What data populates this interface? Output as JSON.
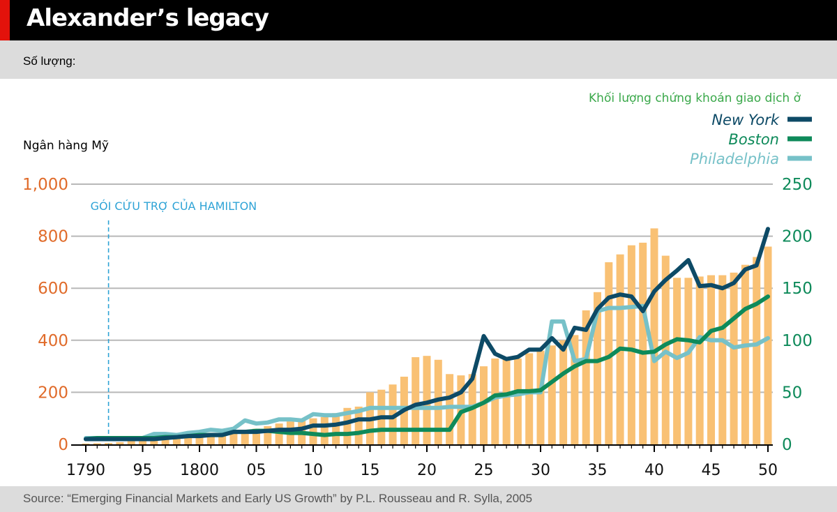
{
  "header": {
    "title": "Alexander’s legacy",
    "subtitle": "Số lượng:"
  },
  "footer": {
    "source": "Source: “Emerging Financial Markets and Early US Growth” by P.L. Rousseau and R. Sylla, 2005"
  },
  "colors": {
    "bars": "#f9c174",
    "new_york": "#0d4a66",
    "boston": "#0e8a5a",
    "philadelphia": "#76c1c8",
    "left_axis": "#e06b2a",
    "right_axis": "#0e8a5a",
    "annotation": "#2ea3d6",
    "grid": "#b8b8b8"
  },
  "chart_data": {
    "type": "bar+line",
    "title": "Alexander’s legacy",
    "left_axis": {
      "label": "Ngân hàng Mỹ",
      "ylim": [
        0,
        1000
      ],
      "ticks": [
        0,
        200,
        400,
        600,
        800,
        1000
      ],
      "tick_labels": [
        "0",
        "200",
        "400",
        "600",
        "800",
        "1,000"
      ]
    },
    "right_axis": {
      "ylim": [
        0,
        250
      ],
      "ticks": [
        0,
        50,
        100,
        150,
        200,
        250
      ],
      "tick_labels": [
        "0",
        "50",
        "100",
        "150",
        "200",
        "250"
      ]
    },
    "x_axis": {
      "range": [
        1790,
        1850
      ],
      "ticks": [
        1790,
        1795,
        1800,
        1805,
        1810,
        1815,
        1820,
        1825,
        1830,
        1835,
        1840,
        1845,
        1850
      ],
      "tick_labels": [
        "1790",
        "95",
        "1800",
        "05",
        "10",
        "15",
        "20",
        "25",
        "30",
        "35",
        "40",
        "45",
        "50"
      ]
    },
    "annotation": {
      "x": 1792,
      "text": "GÓI CỨU TRỢ CỦA HAMILTON"
    },
    "legend": {
      "heading": "Khối lượng chứng khoán giao dịch ở",
      "items": [
        "New York",
        "Boston",
        "Philadelphia"
      ]
    },
    "bars": {
      "name": "Ngân hàng Mỹ",
      "years": [
        1790,
        1791,
        1792,
        1793,
        1794,
        1795,
        1796,
        1797,
        1798,
        1799,
        1800,
        1801,
        1802,
        1803,
        1804,
        1805,
        1806,
        1807,
        1808,
        1809,
        1810,
        1811,
        1812,
        1813,
        1814,
        1815,
        1816,
        1817,
        1818,
        1819,
        1820,
        1821,
        1822,
        1823,
        1824,
        1825,
        1826,
        1827,
        1828,
        1829,
        1830,
        1831,
        1832,
        1833,
        1834,
        1835,
        1836,
        1837,
        1838,
        1839,
        1840,
        1841,
        1842,
        1843,
        1844,
        1845,
        1846,
        1847,
        1848,
        1849,
        1850
      ],
      "values": [
        3,
        4,
        5,
        8,
        12,
        18,
        20,
        25,
        30,
        32,
        32,
        35,
        40,
        45,
        50,
        60,
        70,
        80,
        88,
        90,
        100,
        105,
        120,
        140,
        145,
        200,
        210,
        230,
        260,
        335,
        340,
        325,
        270,
        265,
        270,
        300,
        330,
        330,
        330,
        350,
        360,
        380,
        400,
        420,
        515,
        585,
        700,
        730,
        765,
        775,
        830,
        725,
        640,
        640,
        645,
        650,
        650,
        660,
        690,
        720,
        760
      ]
    },
    "series": [
      {
        "name": "New York",
        "axis": "right",
        "x": [
          1790,
          1791,
          1792,
          1793,
          1794,
          1795,
          1796,
          1797,
          1798,
          1799,
          1800,
          1801,
          1802,
          1803,
          1804,
          1805,
          1806,
          1807,
          1808,
          1809,
          1810,
          1811,
          1812,
          1813,
          1814,
          1815,
          1816,
          1817,
          1818,
          1819,
          1820,
          1821,
          1822,
          1823,
          1824,
          1825,
          1826,
          1827,
          1828,
          1829,
          1830,
          1831,
          1832,
          1833,
          1834,
          1835,
          1836,
          1837,
          1838,
          1839,
          1840,
          1841,
          1842,
          1843,
          1844,
          1845,
          1846,
          1847,
          1848,
          1849,
          1850
        ],
        "values": [
          5,
          5,
          5,
          5,
          5,
          5,
          5,
          6,
          7,
          8,
          8,
          9,
          9,
          12,
          12,
          12,
          13,
          14,
          14,
          15,
          18,
          18,
          19,
          21,
          24,
          24,
          26,
          26,
          33,
          38,
          40,
          43,
          45,
          50,
          63,
          104,
          87,
          82,
          84,
          91,
          91,
          102,
          91,
          112,
          110,
          130,
          141,
          144,
          142,
          128,
          147,
          158,
          167,
          177,
          152,
          153,
          150,
          155,
          168,
          172,
          207
        ],
        "note": "read from right axis (0-250)"
      },
      {
        "name": "Boston",
        "axis": "right",
        "x": [
          1790,
          1791,
          1792,
          1793,
          1794,
          1795,
          1796,
          1797,
          1798,
          1799,
          1800,
          1801,
          1802,
          1803,
          1804,
          1805,
          1806,
          1807,
          1808,
          1809,
          1810,
          1811,
          1812,
          1813,
          1814,
          1815,
          1816,
          1817,
          1818,
          1819,
          1820,
          1821,
          1822,
          1823,
          1824,
          1825,
          1826,
          1827,
          1828,
          1829,
          1830,
          1831,
          1832,
          1833,
          1834,
          1835,
          1836,
          1837,
          1838,
          1839,
          1840,
          1841,
          1842,
          1843,
          1844,
          1845,
          1846,
          1847,
          1848,
          1849,
          1850
        ],
        "values": [
          5,
          6,
          6,
          6,
          6,
          6,
          6,
          7,
          7,
          8,
          9,
          9,
          9,
          12,
          12,
          13,
          13,
          12,
          11,
          11,
          10,
          9,
          10,
          10,
          11,
          13,
          14,
          14,
          14,
          14,
          14,
          14,
          14,
          31,
          35,
          40,
          47,
          48,
          51,
          51,
          52,
          60,
          68,
          75,
          80,
          80,
          84,
          92,
          91,
          88,
          89,
          96,
          101,
          100,
          98,
          109,
          112,
          121,
          130,
          135,
          142
        ],
        "note": "read from right axis (0-250)"
      },
      {
        "name": "Philadelphia",
        "axis": "right",
        "x": [
          1790,
          1791,
          1792,
          1793,
          1794,
          1795,
          1796,
          1797,
          1798,
          1799,
          1800,
          1801,
          1802,
          1803,
          1804,
          1805,
          1806,
          1807,
          1808,
          1809,
          1810,
          1811,
          1812,
          1813,
          1814,
          1815,
          1816,
          1817,
          1818,
          1819,
          1820,
          1821,
          1822,
          1823,
          1824,
          1825,
          1826,
          1827,
          1828,
          1829,
          1830,
          1831,
          1832,
          1833,
          1834,
          1835,
          1836,
          1837,
          1838,
          1839,
          1840,
          1841,
          1842,
          1843,
          1844,
          1845,
          1846,
          1847,
          1848,
          1849,
          1850
        ],
        "values": [
          6,
          6,
          6,
          6,
          6,
          6,
          10,
          10,
          9,
          11,
          12,
          14,
          13,
          15,
          23,
          20,
          21,
          24,
          24,
          23,
          29,
          28,
          28,
          30,
          32,
          35,
          35,
          35,
          35,
          35,
          35,
          35,
          36,
          36,
          36,
          40,
          45,
          47,
          48,
          50,
          50,
          118,
          118,
          80,
          82,
          128,
          131,
          131,
          132,
          133,
          80,
          89,
          83,
          88,
          103,
          100,
          100,
          93,
          95,
          96,
          102
        ],
        "note": "read from right axis (0-250)"
      }
    ]
  }
}
